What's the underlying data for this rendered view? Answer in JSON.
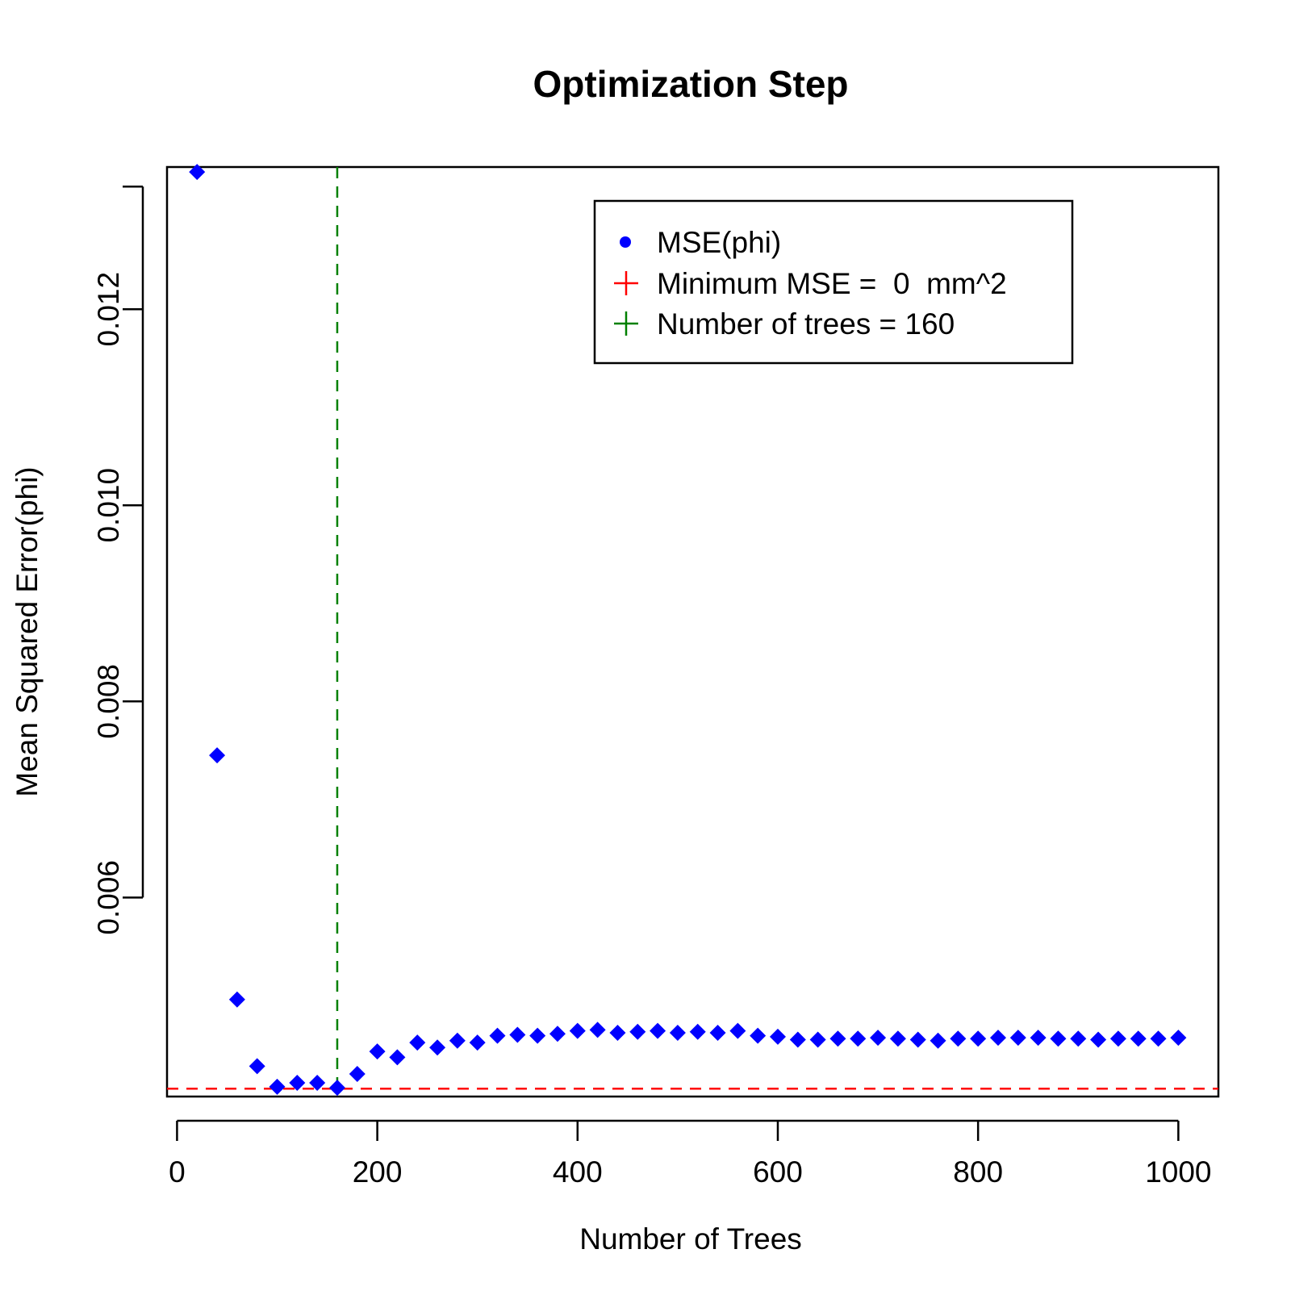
{
  "chart_data": {
    "type": "scatter",
    "title": "Optimization Step",
    "xlabel": "Number of Trees",
    "ylabel": "Mean Squared Error(phi)",
    "xlim": [
      -10,
      1040
    ],
    "ylim": [
      0.00397,
      0.01345
    ],
    "xticks": [
      0,
      200,
      400,
      600,
      800,
      1000
    ],
    "yticks": [
      0.006,
      0.008,
      0.01,
      0.012
    ],
    "ytick_labels": [
      "0.006",
      "0.008",
      "0.010",
      "0.012"
    ],
    "extra_ytick": 0.01325,
    "grid": false,
    "legend_position": "top-right",
    "series": [
      {
        "name": "MSE(phi)",
        "color": "#0000ff",
        "marker": "diamond",
        "x": [
          20,
          40,
          60,
          80,
          100,
          120,
          140,
          160,
          180,
          200,
          220,
          240,
          260,
          280,
          300,
          320,
          340,
          360,
          380,
          400,
          420,
          440,
          460,
          480,
          500,
          520,
          540,
          560,
          580,
          600,
          620,
          640,
          660,
          680,
          700,
          720,
          740,
          760,
          780,
          800,
          820,
          840,
          860,
          880,
          900,
          920,
          940,
          960,
          980,
          1000
        ],
        "y": [
          0.0134,
          0.00745,
          0.00496,
          0.00428,
          0.00407,
          0.00411,
          0.00411,
          0.00406,
          0.0042,
          0.00443,
          0.00437,
          0.00452,
          0.00447,
          0.00454,
          0.00452,
          0.00459,
          0.0046,
          0.00459,
          0.00461,
          0.00464,
          0.00465,
          0.00462,
          0.00463,
          0.00464,
          0.00462,
          0.00463,
          0.00462,
          0.00464,
          0.00459,
          0.00458,
          0.00455,
          0.00455,
          0.00456,
          0.00456,
          0.00457,
          0.00456,
          0.00455,
          0.00454,
          0.00456,
          0.00456,
          0.00457,
          0.00457,
          0.00457,
          0.00456,
          0.00456,
          0.00455,
          0.00456,
          0.00456,
          0.00456,
          0.00457
        ]
      }
    ],
    "reference_lines": {
      "horizontal": {
        "y": 0.00405,
        "color": "#ff0000",
        "style": "dashed"
      },
      "vertical": {
        "x": 160,
        "color": "#008000",
        "style": "dashed"
      }
    },
    "legend": [
      {
        "label": "MSE(phi)",
        "color": "#0000ff",
        "symbol": "dot"
      },
      {
        "label": "Minimum MSE =  0  mm^2",
        "color": "#ff0000",
        "symbol": "plus"
      },
      {
        "label": "Number of trees = 160",
        "color": "#008000",
        "symbol": "plus"
      }
    ]
  }
}
